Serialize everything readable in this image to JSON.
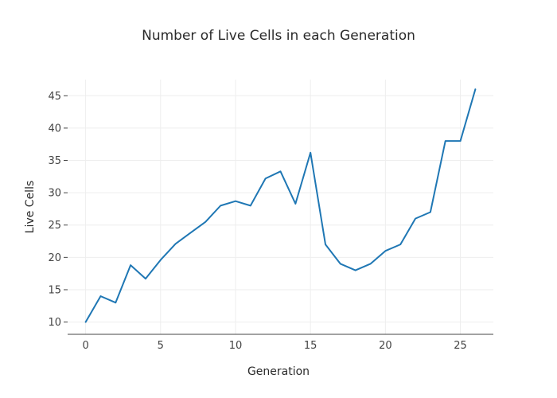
{
  "chart_data": {
    "type": "line",
    "title": "Number of Live Cells in each Generation",
    "xlabel": "Generation",
    "ylabel": "Live Cells",
    "xlim": [
      -1.2,
      27.2
    ],
    "ylim": [
      8.1,
      47.5
    ],
    "xticks": [
      0,
      5,
      10,
      15,
      20,
      25
    ],
    "yticks": [
      10,
      15,
      20,
      25,
      30,
      35,
      40,
      45
    ],
    "grid": true,
    "series": [
      {
        "name": "Live Cells",
        "color": "#1f77b4",
        "x": [
          0,
          1,
          2,
          3,
          4,
          5,
          6,
          7,
          8,
          9,
          10,
          11,
          12,
          13,
          14,
          15,
          16,
          17,
          18,
          19,
          20,
          21,
          22,
          23,
          24,
          25,
          26
        ],
        "y": [
          10,
          14,
          13,
          18.8,
          16.7,
          19.6,
          22.1,
          23.8,
          25.5,
          28,
          28.7,
          28,
          32.2,
          33.3,
          28.3,
          36.2,
          22,
          19,
          18,
          19,
          21,
          22,
          26,
          27,
          38,
          38,
          46
        ]
      }
    ]
  }
}
